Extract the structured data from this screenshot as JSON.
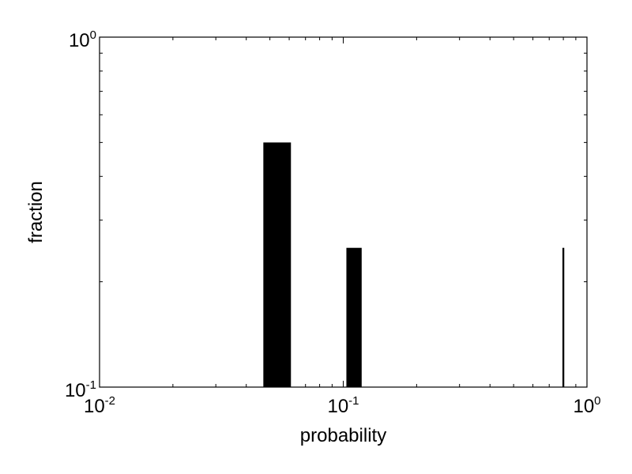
{
  "chart_data": {
    "type": "bar",
    "xlabel": "probability",
    "ylabel": "fraction",
    "xscale": "log",
    "yscale": "log",
    "xlim": [
      0.01,
      1
    ],
    "ylim": [
      0.1,
      1
    ],
    "grid": false,
    "bars": [
      {
        "x_from": 0.047,
        "x_to": 0.061,
        "value": 0.5
      },
      {
        "x_from": 0.103,
        "x_to": 0.119,
        "value": 0.25
      },
      {
        "x_from": 0.793,
        "x_to": 0.807,
        "value": 0.25
      }
    ],
    "x_ticks": [
      {
        "base": "10",
        "exp": "-2"
      },
      {
        "base": "10",
        "exp": "-1"
      },
      {
        "base": "10",
        "exp": "0"
      }
    ],
    "y_ticks": [
      {
        "base": "10",
        "exp": "-1"
      },
      {
        "base": "10",
        "exp": "0"
      }
    ],
    "bar_color": "#000000"
  }
}
